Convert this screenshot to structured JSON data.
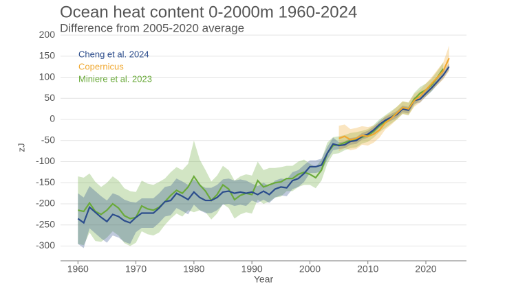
{
  "chart_data": {
    "type": "line",
    "title": "Ocean heat content 0-2000m 1960-2024",
    "subtitle": "Difference from 2005-2020 average",
    "x_label": "Year",
    "y_label": "zJ",
    "xlim": [
      1957,
      2027
    ],
    "ylim": [
      -335,
      205
    ],
    "xticks": [
      1960,
      1970,
      1980,
      1990,
      2000,
      2010,
      2020
    ],
    "yticks": [
      -300,
      -250,
      -200,
      -150,
      -100,
      -50,
      0,
      50,
      100,
      150,
      200
    ],
    "grid": true,
    "legend": "upper left",
    "series": [
      {
        "name": "Cheng et al. 2024",
        "color": "#2b4c8c",
        "x": [
          1960,
          1961,
          1962,
          1963,
          1964,
          1965,
          1966,
          1967,
          1968,
          1969,
          1970,
          1971,
          1972,
          1973,
          1974,
          1975,
          1976,
          1977,
          1978,
          1979,
          1980,
          1981,
          1982,
          1983,
          1984,
          1985,
          1986,
          1987,
          1988,
          1989,
          1990,
          1991,
          1992,
          1993,
          1994,
          1995,
          1996,
          1997,
          1998,
          1999,
          2000,
          2001,
          2002,
          2003,
          2004,
          2005,
          2006,
          2007,
          2008,
          2009,
          2010,
          2011,
          2012,
          2013,
          2014,
          2015,
          2016,
          2017,
          2018,
          2019,
          2020,
          2021,
          2022,
          2023,
          2024
        ],
        "values": [
          -235,
          -245,
          -208,
          -220,
          -232,
          -242,
          -225,
          -230,
          -240,
          -245,
          -232,
          -222,
          -222,
          -222,
          -210,
          -195,
          -192,
          -175,
          -182,
          -190,
          -172,
          -185,
          -192,
          -192,
          -185,
          -172,
          -170,
          -175,
          -172,
          -175,
          -172,
          -178,
          -170,
          -178,
          -165,
          -160,
          -162,
          -145,
          -140,
          -128,
          -112,
          -112,
          -108,
          -80,
          -58,
          -62,
          -60,
          -52,
          -50,
          -40,
          -35,
          -25,
          -12,
          -2,
          5,
          12,
          25,
          22,
          45,
          48,
          62,
          75,
          90,
          105,
          125
        ],
        "errors": [
          60,
          60,
          50,
          50,
          50,
          50,
          50,
          50,
          50,
          50,
          35,
          35,
          35,
          35,
          35,
          35,
          35,
          35,
          35,
          35,
          30,
          30,
          30,
          30,
          30,
          30,
          30,
          30,
          30,
          30,
          20,
          20,
          20,
          20,
          20,
          20,
          20,
          20,
          20,
          20,
          15,
          15,
          15,
          15,
          15,
          8,
          8,
          8,
          8,
          8,
          8,
          8,
          8,
          8,
          8,
          8,
          8,
          8,
          8,
          8,
          8,
          8,
          8,
          8,
          8
        ]
      },
      {
        "name": "Copernicus",
        "color": "#f0a830",
        "x": [
          2005,
          2006,
          2007,
          2008,
          2009,
          2010,
          2011,
          2012,
          2013,
          2014,
          2015,
          2016,
          2017,
          2018,
          2019,
          2020,
          2021,
          2022,
          2023,
          2024
        ],
        "values": [
          -45,
          -40,
          -48,
          -45,
          -38,
          -40,
          -35,
          -25,
          -8,
          2,
          15,
          28,
          25,
          45,
          55,
          70,
          85,
          100,
          115,
          145
        ],
        "errors": [
          30,
          28,
          25,
          25,
          22,
          22,
          20,
          18,
          16,
          15,
          15,
          15,
          15,
          15,
          15,
          15,
          15,
          18,
          20,
          30
        ]
      },
      {
        "name": "Miniere et al. 2023",
        "color": "#6aaa3a",
        "x": [
          1960,
          1961,
          1962,
          1963,
          1964,
          1965,
          1966,
          1967,
          1968,
          1969,
          1970,
          1971,
          1972,
          1973,
          1974,
          1975,
          1976,
          1977,
          1978,
          1979,
          1980,
          1981,
          1982,
          1983,
          1984,
          1985,
          1986,
          1987,
          1988,
          1989,
          1990,
          1991,
          1992,
          1993,
          1994,
          1995,
          1996,
          1997,
          1998,
          1999,
          2000,
          2001,
          2002,
          2003,
          2004,
          2005,
          2006,
          2007,
          2008,
          2009,
          2010,
          2011,
          2012,
          2013,
          2014,
          2015,
          2016,
          2017,
          2018,
          2019,
          2020,
          2021,
          2022,
          2023
        ],
        "values": [
          -215,
          -218,
          -198,
          -218,
          -225,
          -215,
          -200,
          -210,
          -228,
          -235,
          -232,
          -205,
          -212,
          -215,
          -208,
          -195,
          -180,
          -168,
          -175,
          -160,
          -135,
          -155,
          -170,
          -192,
          -178,
          -155,
          -165,
          -190,
          -180,
          -175,
          -178,
          -145,
          -160,
          -155,
          -150,
          -148,
          -140,
          -140,
          -130,
          -125,
          -130,
          -138,
          -120,
          -80,
          -62,
          -60,
          -55,
          -50,
          -48,
          -42,
          -38,
          -28,
          -15,
          -5,
          5,
          15,
          28,
          25,
          48,
          62,
          70,
          82,
          100,
          120
        ],
        "errors": [
          80,
          80,
          70,
          70,
          65,
          65,
          65,
          65,
          65,
          65,
          60,
          60,
          60,
          60,
          60,
          55,
          55,
          55,
          55,
          55,
          85,
          60,
          50,
          45,
          45,
          45,
          45,
          45,
          45,
          45,
          45,
          45,
          40,
          40,
          35,
          35,
          30,
          30,
          30,
          30,
          25,
          25,
          25,
          25,
          20,
          20,
          18,
          18,
          18,
          15,
          15,
          15,
          15,
          15,
          15,
          15,
          15,
          15,
          15,
          15,
          15,
          15,
          15,
          15
        ]
      }
    ]
  }
}
